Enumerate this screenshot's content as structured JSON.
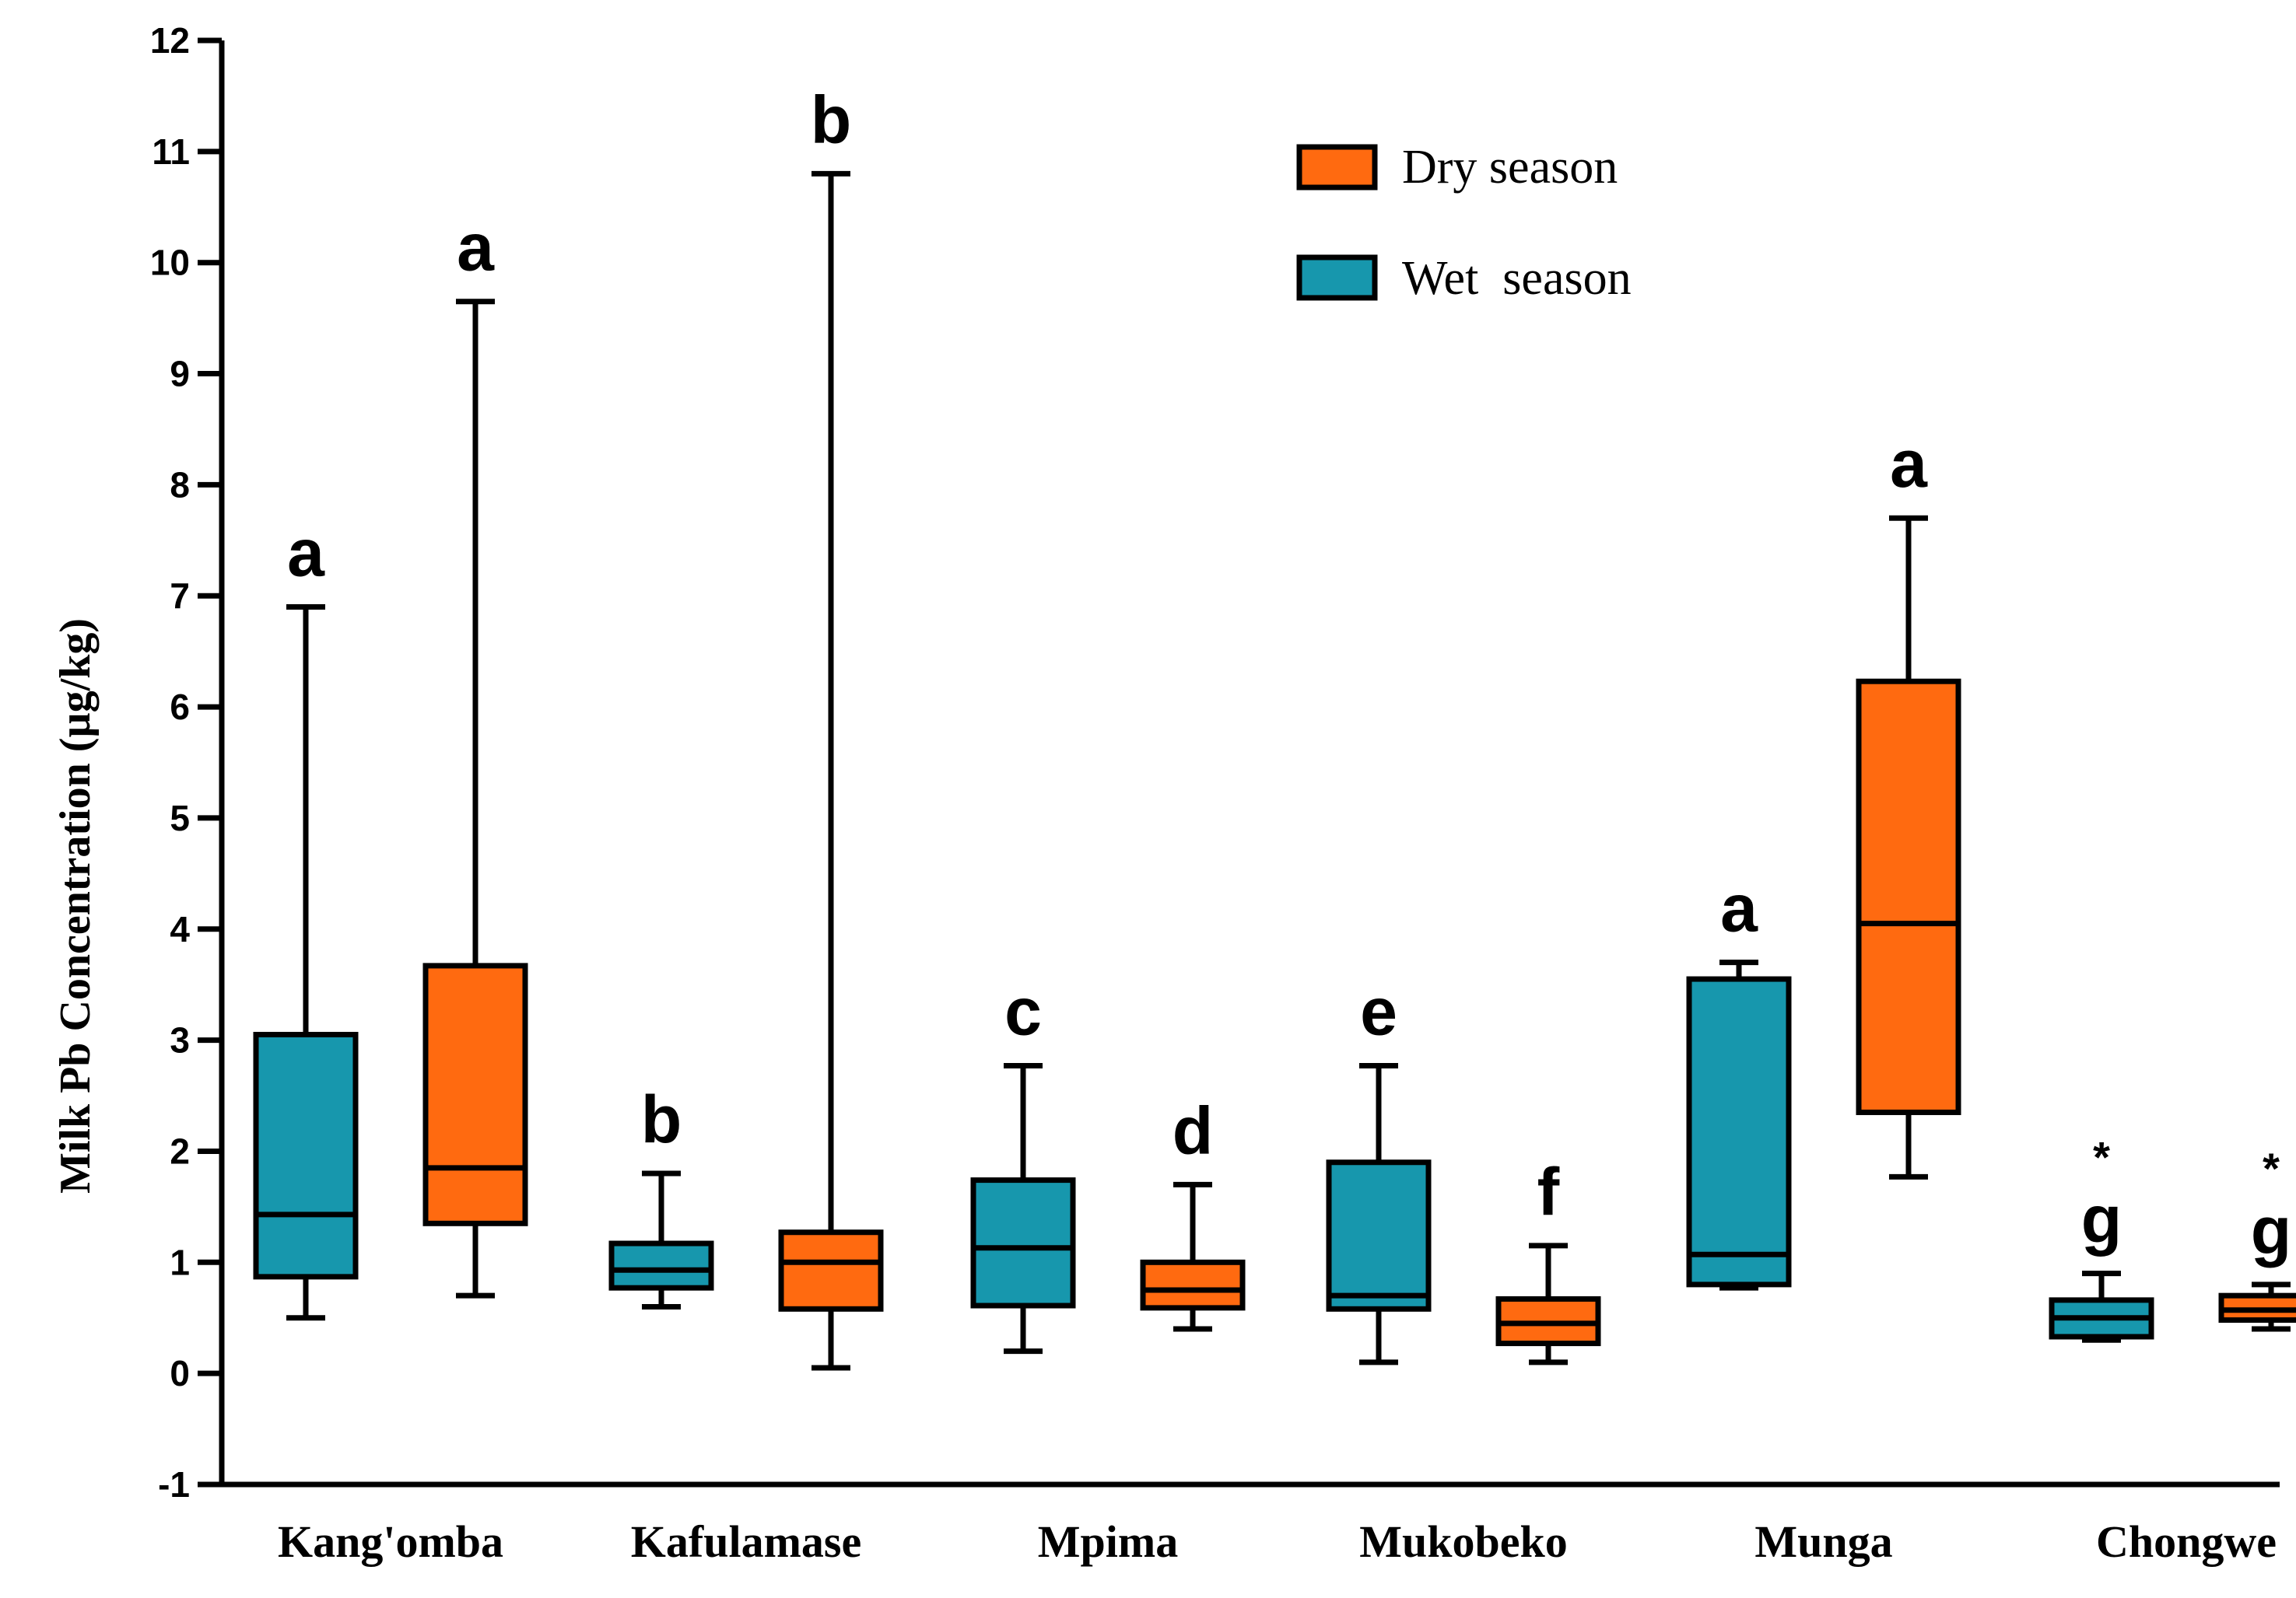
{
  "chart_data": {
    "type": "box",
    "title": "",
    "xlabel": "",
    "ylabel": "Milk Pb Concentration  (µg/kg)",
    "ylim": [
      -1,
      12
    ],
    "yticks": [
      -1,
      0,
      1,
      2,
      3,
      4,
      5,
      6,
      7,
      8,
      9,
      10,
      11,
      12
    ],
    "categories": [
      "Kang'omba",
      "Kafulamase",
      "Mpima",
      "Mukobeko",
      "Munga",
      "Chongwe"
    ],
    "legend": {
      "position": "top-right",
      "items": [
        {
          "label": "Dry season",
          "color": "#ff6a10"
        },
        {
          "label": "Wet  season",
          "color": "#1797ad"
        }
      ]
    },
    "series": [
      {
        "name": "Wet season",
        "color": "#1797ad",
        "boxes": [
          {
            "category": "Kang'omba",
            "min": 0.5,
            "q1": 0.87,
            "median": 1.43,
            "q3": 3.05,
            "max": 6.9,
            "label": "a"
          },
          {
            "category": "Kafulamase",
            "min": 0.6,
            "q1": 0.77,
            "median": 0.93,
            "q3": 1.17,
            "max": 1.8,
            "label": "b"
          },
          {
            "category": "Mpima",
            "min": 0.2,
            "q1": 0.61,
            "median": 1.13,
            "q3": 1.74,
            "max": 2.77,
            "label": "c"
          },
          {
            "category": "Mukobeko",
            "min": 0.1,
            "q1": 0.58,
            "median": 0.7,
            "q3": 1.9,
            "max": 2.77,
            "label": "e"
          },
          {
            "category": "Munga",
            "min": 0.77,
            "q1": 0.8,
            "median": 1.07,
            "q3": 3.55,
            "max": 3.7,
            "label": "a"
          },
          {
            "category": "Chongwe",
            "min": 0.3,
            "q1": 0.33,
            "median": 0.5,
            "q3": 0.66,
            "max": 0.9,
            "label": "g",
            "mark": "*"
          }
        ]
      },
      {
        "name": "Dry season",
        "color": "#ff6a10",
        "boxes": [
          {
            "category": "Kang'omba",
            "min": 0.7,
            "q1": 1.35,
            "median": 1.85,
            "q3": 3.67,
            "max": 9.65,
            "label": "a"
          },
          {
            "category": "Kafulamase",
            "min": 0.05,
            "q1": 0.58,
            "median": 1.0,
            "q3": 1.27,
            "max": 10.8,
            "label": "b"
          },
          {
            "category": "Mpima",
            "min": 0.4,
            "q1": 0.59,
            "median": 0.75,
            "q3": 1.0,
            "max": 1.7,
            "label": "d"
          },
          {
            "category": "Mukobeko",
            "min": 0.1,
            "q1": 0.27,
            "median": 0.45,
            "q3": 0.67,
            "max": 1.15,
            "label": "f"
          },
          {
            "category": "Munga",
            "min": 1.77,
            "q1": 2.35,
            "median": 4.05,
            "q3": 6.23,
            "max": 7.7,
            "label": "a"
          },
          {
            "category": "Chongwe",
            "min": 0.4,
            "q1": 0.48,
            "median": 0.57,
            "q3": 0.7,
            "max": 0.8,
            "label": "g",
            "mark": "*"
          }
        ]
      }
    ]
  }
}
